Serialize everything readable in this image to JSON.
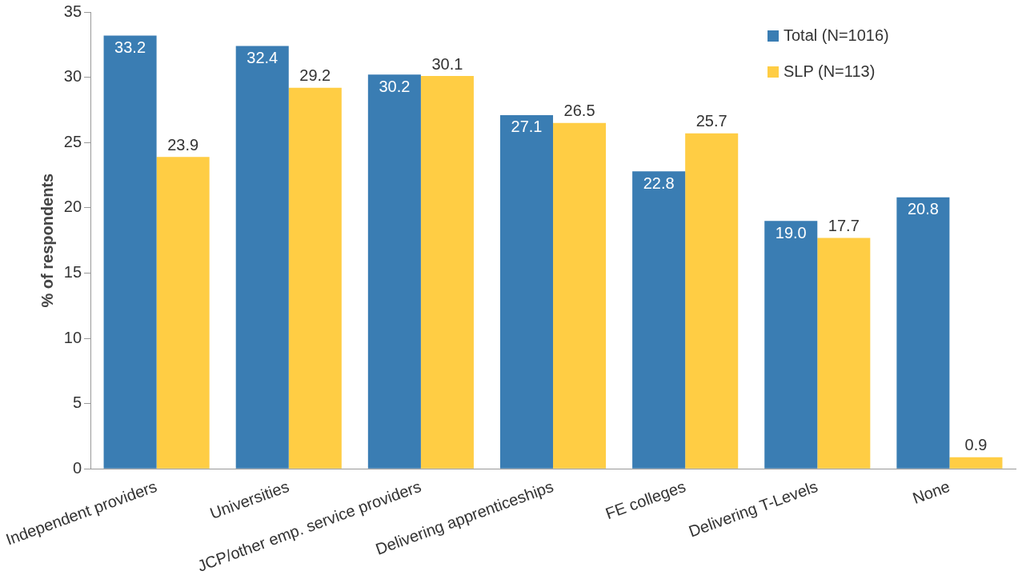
{
  "chart_data": {
    "type": "bar",
    "ylabel": "% of respondents",
    "categories": [
      "Independent providers",
      "Universities",
      "JCP/other emp. service providers",
      "Delivering apprenticeships",
      "FE colleges",
      "Delivering T-Levels",
      "None"
    ],
    "series": [
      {
        "name": "Total (N=1016)",
        "color": "#3a7db3",
        "values": [
          33.2,
          32.4,
          30.2,
          27.1,
          22.8,
          19.0,
          20.8
        ],
        "value_labels": [
          "33.2",
          "32.4",
          "30.2",
          "27.1",
          "22.8",
          "19.0",
          "20.8"
        ]
      },
      {
        "name": "SLP (N=113)",
        "color": "#ffcd44",
        "values": [
          23.9,
          29.2,
          30.1,
          26.5,
          25.7,
          17.7,
          0.9
        ],
        "value_labels": [
          "23.9",
          "29.2",
          "30.1",
          "26.5",
          "25.7",
          "17.7",
          "0.9"
        ]
      }
    ],
    "ylim": [
      0,
      35
    ],
    "yticks": [
      0,
      5,
      10,
      15,
      20,
      25,
      30,
      35
    ],
    "grid": false,
    "legend": "top right"
  }
}
